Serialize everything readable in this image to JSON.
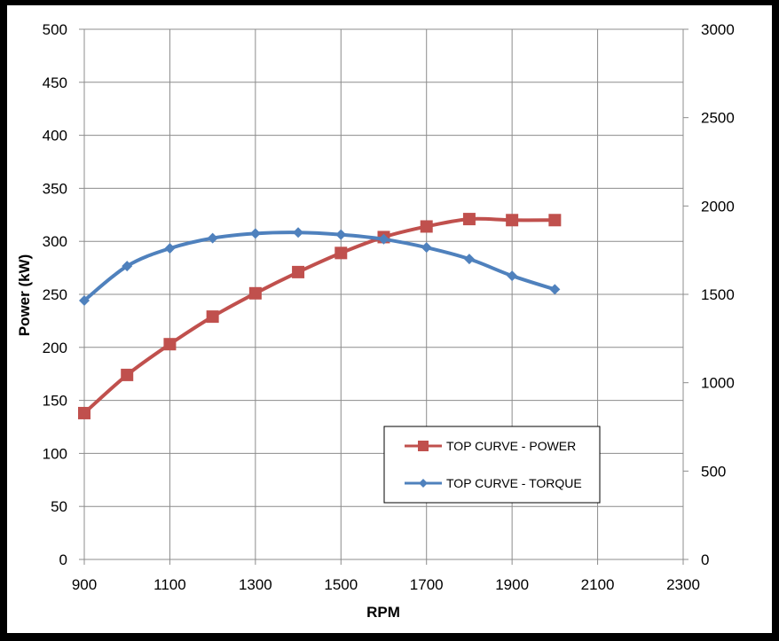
{
  "chart_data": {
    "type": "line",
    "title": "",
    "xlabel": "RPM",
    "ylabel": "Power (kW)",
    "y2label": "",
    "xlim": [
      900,
      2300
    ],
    "ylim": [
      0,
      500
    ],
    "y2lim": [
      0,
      3000
    ],
    "x_ticks": [
      900,
      1100,
      1300,
      1500,
      1700,
      1900,
      2100,
      2300
    ],
    "y_ticks": [
      0,
      50,
      100,
      150,
      200,
      250,
      300,
      350,
      400,
      450,
      500
    ],
    "y2_ticks": [
      0,
      500,
      1000,
      1500,
      2000,
      2500,
      3000
    ],
    "grid": true,
    "legend_position": "bottom-right",
    "series": [
      {
        "name": "TOP CURVE - POWER",
        "axis": "left",
        "color": "#c0504d",
        "marker": "square",
        "x": [
          900,
          1000,
          1100,
          1200,
          1300,
          1400,
          1500,
          1600,
          1700,
          1800,
          1900,
          2000
        ],
        "values": [
          138,
          174,
          203,
          229,
          251,
          271,
          289,
          304,
          314,
          321,
          320,
          320
        ]
      },
      {
        "name": "TOP CURVE - TORQUE",
        "axis": "right",
        "color": "#4f81bd",
        "marker": "diamond",
        "x": [
          900,
          1000,
          1100,
          1200,
          1300,
          1400,
          1500,
          1600,
          1700,
          1800,
          1900,
          2000
        ],
        "values": [
          1465,
          1660,
          1760,
          1818,
          1844,
          1850,
          1838,
          1812,
          1765,
          1700,
          1605,
          1528
        ]
      }
    ]
  }
}
